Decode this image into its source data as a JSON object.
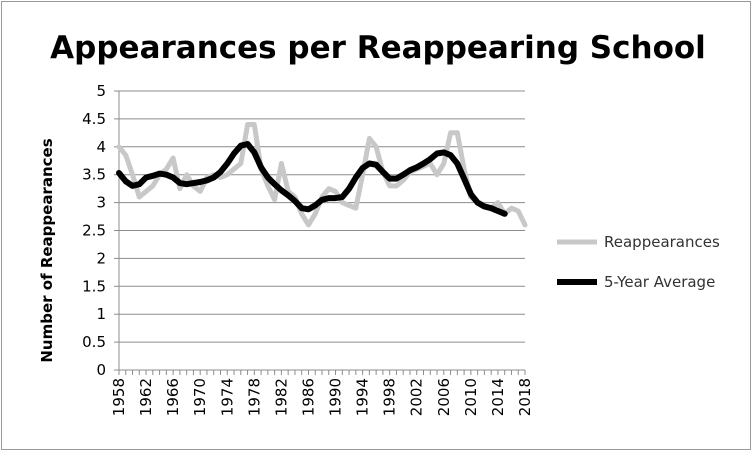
{
  "chart_data": {
    "type": "line",
    "title": "Appearances per Reappearing School",
    "xlabel": "",
    "ylabel": "Number of Reappearances",
    "ylim": [
      0,
      5
    ],
    "yticks": [
      "0",
      "0.5",
      "1",
      "1.5",
      "2",
      "2.5",
      "3",
      "3.5",
      "4",
      "4.5",
      "5"
    ],
    "xlim": [
      1958,
      2018
    ],
    "xticks": [
      "1958",
      "1962",
      "1966",
      "1970",
      "1974",
      "1978",
      "1982",
      "1986",
      "1990",
      "1994",
      "1998",
      "2002",
      "2006",
      "2010",
      "2014",
      "2018"
    ],
    "grid": "horizontal",
    "legend_position": "right",
    "series": [
      {
        "name": "Reappearances",
        "color": "#c8c8c8",
        "x": [
          1958,
          1959,
          1960,
          1961,
          1962,
          1963,
          1964,
          1965,
          1966,
          1967,
          1968,
          1969,
          1970,
          1971,
          1972,
          1973,
          1974,
          1975,
          1976,
          1977,
          1978,
          1979,
          1980,
          1981,
          1982,
          1983,
          1984,
          1985,
          1986,
          1987,
          1988,
          1989,
          1990,
          1991,
          1992,
          1993,
          1994,
          1995,
          1996,
          1997,
          1998,
          1999,
          2000,
          2001,
          2002,
          2003,
          2004,
          2005,
          2006,
          2007,
          2008,
          2009,
          2010,
          2011,
          2012,
          2013,
          2014,
          2015,
          2016,
          2017,
          2018
        ],
        "values": [
          4.0,
          3.85,
          3.5,
          3.1,
          3.2,
          3.3,
          3.5,
          3.6,
          3.8,
          3.25,
          3.5,
          3.3,
          3.2,
          3.45,
          3.5,
          3.45,
          3.5,
          3.6,
          3.7,
          4.4,
          4.4,
          3.6,
          3.3,
          3.05,
          3.7,
          3.2,
          3.1,
          2.8,
          2.6,
          2.8,
          3.1,
          3.25,
          3.2,
          3.0,
          2.95,
          2.9,
          3.5,
          4.15,
          4.0,
          3.55,
          3.3,
          3.3,
          3.4,
          3.55,
          3.6,
          3.65,
          3.7,
          3.5,
          3.7,
          4.25,
          4.25,
          3.6,
          3.1,
          3.0,
          2.95,
          2.9,
          3.0,
          2.8,
          2.9,
          2.85,
          2.6
        ]
      },
      {
        "name": "5-Year Average",
        "color": "#000000",
        "x": [
          1958,
          1959,
          1960,
          1961,
          1962,
          1963,
          1964,
          1965,
          1966,
          1967,
          1968,
          1969,
          1970,
          1971,
          1972,
          1973,
          1974,
          1975,
          1976,
          1977,
          1978,
          1979,
          1980,
          1981,
          1982,
          1983,
          1984,
          1985,
          1986,
          1987,
          1988,
          1989,
          1990,
          1991,
          1992,
          1993,
          1994,
          1995,
          1996,
          1997,
          1998,
          1999,
          2000,
          2001,
          2002,
          2003,
          2004,
          2005,
          2006,
          2007,
          2008,
          2009,
          2010,
          2011,
          2012,
          2013,
          2014,
          2015
        ],
        "values": [
          3.53,
          3.38,
          3.3,
          3.33,
          3.45,
          3.48,
          3.52,
          3.5,
          3.45,
          3.35,
          3.33,
          3.35,
          3.37,
          3.4,
          3.45,
          3.55,
          3.7,
          3.88,
          4.02,
          4.05,
          3.9,
          3.63,
          3.45,
          3.33,
          3.22,
          3.13,
          3.03,
          2.9,
          2.88,
          2.95,
          3.05,
          3.08,
          3.08,
          3.1,
          3.25,
          3.45,
          3.62,
          3.7,
          3.68,
          3.55,
          3.43,
          3.43,
          3.5,
          3.58,
          3.63,
          3.7,
          3.78,
          3.88,
          3.9,
          3.85,
          3.7,
          3.43,
          3.15,
          3.0,
          2.93,
          2.9,
          2.85,
          2.8
        ]
      }
    ]
  }
}
